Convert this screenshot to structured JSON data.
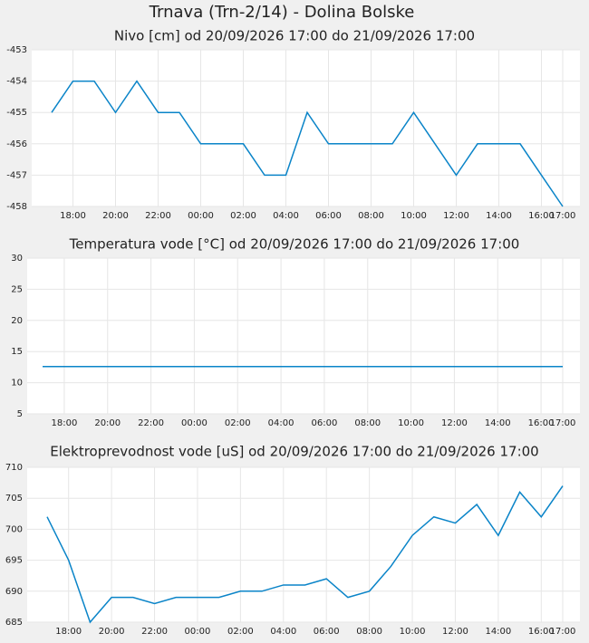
{
  "title": "Trnava (Trn-2/14) - Dolina Bolske",
  "chart_data": [
    {
      "type": "line",
      "title": "Nivo [cm] od 20/09/2026 17:00 do 21/09/2026 17:00",
      "categories": [
        null,
        "18:00",
        null,
        "20:00",
        null,
        "22:00",
        null,
        "00:00",
        null,
        "02:00",
        null,
        "04:00",
        null,
        "06:00",
        null,
        "08:00",
        null,
        "10:00",
        null,
        "12:00",
        null,
        "14:00",
        null,
        "16:00",
        "17:00"
      ],
      "values": [
        -455,
        -454,
        -454,
        -455,
        -454,
        -455,
        -455,
        -456,
        -456,
        -456,
        -457,
        -457,
        -455,
        -456,
        -456,
        -456,
        -456,
        -455,
        -456,
        -457,
        -456,
        -456,
        -456,
        -457,
        -458
      ],
      "color": "#0a84c8",
      "ylim": [
        -458,
        -453
      ],
      "yticks": [
        -458,
        -457,
        -456,
        -455,
        -454,
        -453
      ],
      "grid": true
    },
    {
      "type": "line",
      "title": "Temperatura vode [°C] od 20/09/2026 17:00 do 21/09/2026 17:00",
      "categories": [
        null,
        "18:00",
        null,
        "20:00",
        null,
        "22:00",
        null,
        "00:00",
        null,
        "02:00",
        null,
        "04:00",
        null,
        "06:00",
        null,
        "08:00",
        null,
        "10:00",
        null,
        "12:00",
        null,
        "14:00",
        null,
        "16:00",
        "17:00"
      ],
      "values": [
        12.6,
        12.6,
        12.6,
        12.6,
        12.6,
        12.6,
        12.6,
        12.6,
        12.6,
        12.6,
        12.6,
        12.6,
        12.6,
        12.6,
        12.6,
        12.6,
        12.6,
        12.6,
        12.6,
        12.6,
        12.6,
        12.6,
        12.6,
        12.6,
        12.6
      ],
      "color": "#0a84c8",
      "ylim": [
        5,
        30
      ],
      "yticks": [
        5,
        10,
        15,
        20,
        25,
        30
      ],
      "grid": true
    },
    {
      "type": "line",
      "title": "Elektroprevodnost vode [uS] od 20/09/2026 17:00 do 21/09/2026 17:00",
      "categories": [
        null,
        "18:00",
        null,
        "20:00",
        null,
        "22:00",
        null,
        "00:00",
        null,
        "02:00",
        null,
        "04:00",
        null,
        "06:00",
        null,
        "08:00",
        null,
        "10:00",
        null,
        "12:00",
        null,
        "14:00",
        null,
        "16:00",
        "17:00"
      ],
      "values": [
        702,
        695,
        685,
        689,
        689,
        688,
        689,
        689,
        689,
        690,
        690,
        691,
        691,
        692,
        689,
        690,
        694,
        699,
        702,
        701,
        704,
        699,
        706,
        702,
        707
      ],
      "color": "#0a84c8",
      "ylim": [
        685,
        710
      ],
      "yticks": [
        685,
        690,
        695,
        700,
        705,
        710
      ],
      "grid": true
    }
  ]
}
